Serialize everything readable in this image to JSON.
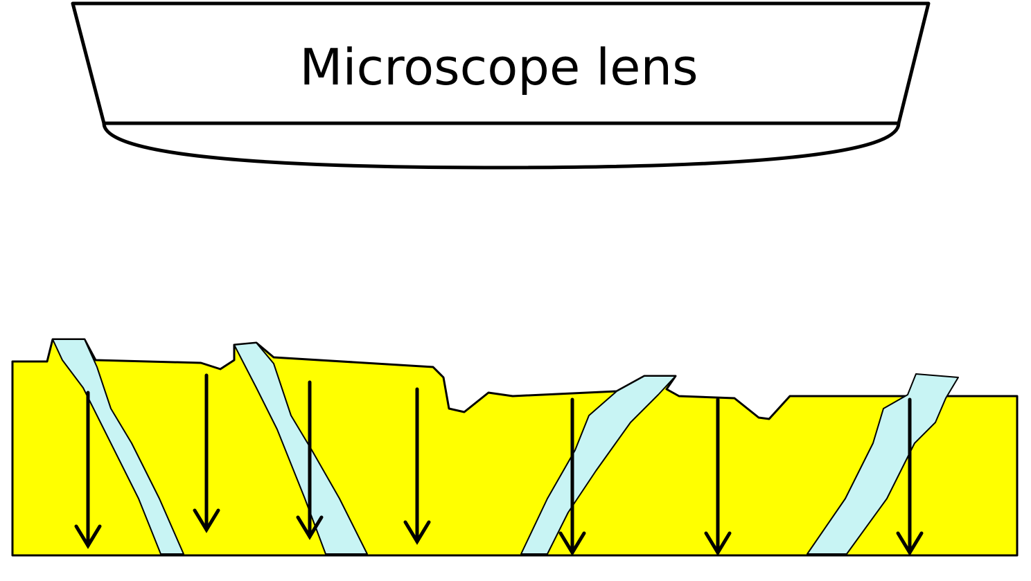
{
  "lens": {
    "label": "Microscope lens"
  }
}
